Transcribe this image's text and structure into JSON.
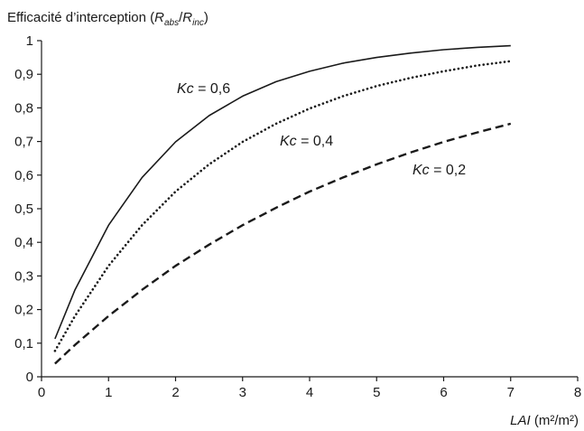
{
  "chart_data": {
    "type": "line",
    "ylabel": {
      "prefix": "Efficacité d’interception (",
      "num_main": "R",
      "num_sub": "abs",
      "slash": "/",
      "den_main": "R",
      "den_sub": "inc",
      "suffix": ")"
    },
    "xlabel": {
      "var": "LAI",
      "unit": " (m²/m²)"
    },
    "xlim": [
      0,
      8
    ],
    "ylim": [
      0,
      1
    ],
    "x_ticks": [
      0,
      1,
      2,
      3,
      4,
      5,
      6,
      7,
      8
    ],
    "x_tick_labels": [
      "0",
      "1",
      "2",
      "3",
      "4",
      "5",
      "6",
      "7",
      "8"
    ],
    "y_ticks": [
      0,
      0.1,
      0.2,
      0.3,
      0.4,
      0.5,
      0.6,
      0.7,
      0.8,
      0.9,
      1
    ],
    "y_tick_labels": [
      "0",
      "0,1",
      "0,2",
      "0,3",
      "0,4",
      "0,5",
      "0,6",
      "0,7",
      "0,8",
      "0,9",
      "1"
    ],
    "grid": false,
    "x": [
      0.2,
      0.5,
      1,
      1.5,
      2,
      2.5,
      3,
      3.5,
      4,
      4.5,
      5,
      5.5,
      6,
      6.5,
      7
    ],
    "series": [
      {
        "label_var": "Kc",
        "label_value": " = 0,6",
        "style": "solid",
        "values": [
          0.113,
          0.259,
          0.451,
          0.593,
          0.699,
          0.777,
          0.835,
          0.878,
          0.909,
          0.933,
          0.95,
          0.963,
          0.973,
          0.98,
          0.985
        ]
      },
      {
        "label_var": "Kc",
        "label_value": " = 0,4",
        "style": "dotted",
        "values": [
          0.077,
          0.181,
          0.33,
          0.451,
          0.551,
          0.632,
          0.699,
          0.753,
          0.798,
          0.835,
          0.865,
          0.889,
          0.909,
          0.926,
          0.939
        ]
      },
      {
        "label_var": "Kc",
        "label_value": " = 0,2",
        "style": "dashed",
        "values": [
          0.039,
          0.095,
          0.181,
          0.259,
          0.33,
          0.393,
          0.451,
          0.503,
          0.551,
          0.593,
          0.632,
          0.667,
          0.699,
          0.727,
          0.753
        ]
      }
    ],
    "colors": {
      "line": "#1a1a1a",
      "text": "#1a1a1a",
      "background": "#ffffff"
    }
  }
}
